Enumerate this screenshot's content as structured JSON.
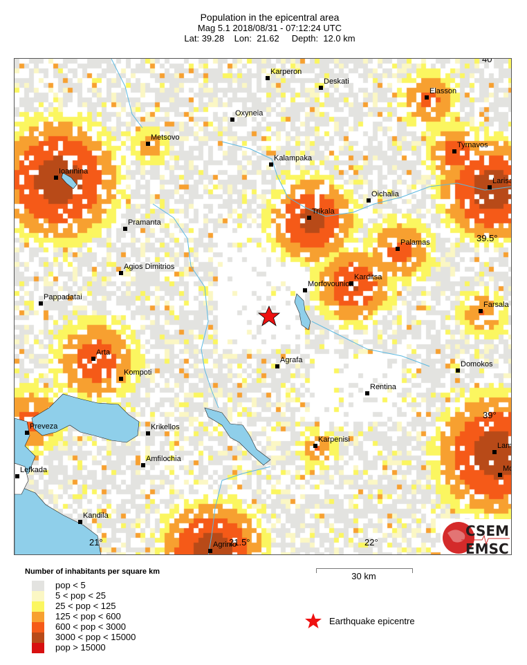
{
  "header": {
    "title": "Population in the epicentral area",
    "line2": "Mag 5.1  2018/08/31 - 07:12:24 UTC",
    "line3": "Lat: 39.28    Lon:  21.62     Depth:  12.0 km"
  },
  "event": {
    "magnitude": 5.1,
    "date": "2018/08/31",
    "time": "07:12:24 UTC",
    "lat": 39.28,
    "lon": 21.62,
    "depth_km": 12.0
  },
  "map": {
    "axis_labels": {
      "lat_40": "40°",
      "lat_39_5": "39.5°",
      "lat_39": "39°",
      "lon_21": "21°",
      "lon_21_5": "21.5°",
      "lon_22": "22°"
    },
    "cities": [
      {
        "name": "Karperon"
      },
      {
        "name": "Deskati"
      },
      {
        "name": "Elasson"
      },
      {
        "name": "Oxyneia"
      },
      {
        "name": "Metsovo"
      },
      {
        "name": "Tyrnavos"
      },
      {
        "name": "Kalampaka"
      },
      {
        "name": "Ioannina"
      },
      {
        "name": "Larisa"
      },
      {
        "name": "Oichalia"
      },
      {
        "name": "Trikala"
      },
      {
        "name": "Pramanta"
      },
      {
        "name": "Palamas"
      },
      {
        "name": "Agios Dimitrios"
      },
      {
        "name": "Morfovounion"
      },
      {
        "name": "Karditsa"
      },
      {
        "name": "Pappadatai"
      },
      {
        "name": "Farsala"
      },
      {
        "name": "Arta"
      },
      {
        "name": "Agrafa"
      },
      {
        "name": "Kompoti"
      },
      {
        "name": "Domokos"
      },
      {
        "name": "Rentina"
      },
      {
        "name": "Preveza"
      },
      {
        "name": "Krikellos"
      },
      {
        "name": "Karpenisi"
      },
      {
        "name": "Lamia"
      },
      {
        "name": "Amfilochia"
      },
      {
        "name": "Molos"
      },
      {
        "name": "Lefkada"
      },
      {
        "name": "Kandila"
      },
      {
        "name": "Agrinio"
      }
    ],
    "water_color": "#8fcfea",
    "river_color": "#5bb8e0",
    "epicentre_color": "#ee1111"
  },
  "logo": {
    "line1": "CSEM",
    "line2": "EMSC",
    "color": "#d42a2a"
  },
  "legend": {
    "title": "Number of inhabitants per square km",
    "items": [
      {
        "label": "pop < 5",
        "color": "#e3e3e0"
      },
      {
        "label": "5 < pop < 25",
        "color": "#fbf7c4"
      },
      {
        "label": "25 < pop < 125",
        "color": "#fbf660"
      },
      {
        "label": "125 < pop < 600",
        "color": "#f7a030"
      },
      {
        "label": "600 < pop < 3000",
        "color": "#f55a18"
      },
      {
        "label": "3000 < pop < 15000",
        "color": "#b84a18"
      },
      {
        "label": "pop > 15000",
        "color": "#d81010"
      }
    ]
  },
  "scale": {
    "label": "30 km"
  },
  "epicentre_legend": {
    "label": "Earthquake epicentre"
  }
}
